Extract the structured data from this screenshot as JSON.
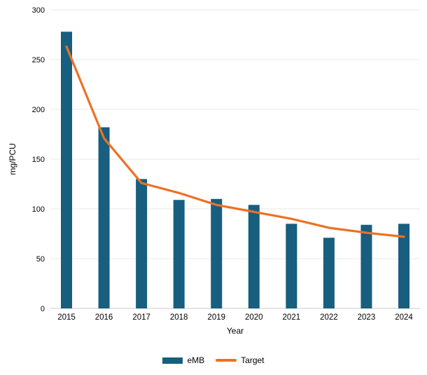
{
  "chart_data": {
    "type": "bar",
    "subtype": "bar-with-line-overlay",
    "title": "",
    "categories": [
      "2015",
      "2016",
      "2017",
      "2018",
      "2019",
      "2020",
      "2021",
      "2022",
      "2023",
      "2024"
    ],
    "series": [
      {
        "name": "eMB",
        "type": "bar",
        "color": "#175e7f",
        "values": [
          278,
          182,
          130,
          109,
          110,
          104,
          85,
          71,
          84,
          85
        ]
      },
      {
        "name": "Target",
        "type": "line",
        "color": "#ed7124",
        "values": [
          263,
          171,
          126,
          116,
          104,
          97,
          90,
          81,
          76,
          72
        ]
      }
    ],
    "xlabel": "Year",
    "ylabel": "mg/PCU",
    "ylim": [
      0,
      300
    ],
    "ytick_step": 50,
    "yticks": [
      0,
      50,
      100,
      150,
      200,
      250,
      300
    ],
    "grid": "horizontal",
    "legend_position": "bottom"
  },
  "colors": {
    "background": "#ffffff",
    "gridline": "#e8e8e8",
    "baseline": "#c9c9c9",
    "text": "#000000"
  }
}
